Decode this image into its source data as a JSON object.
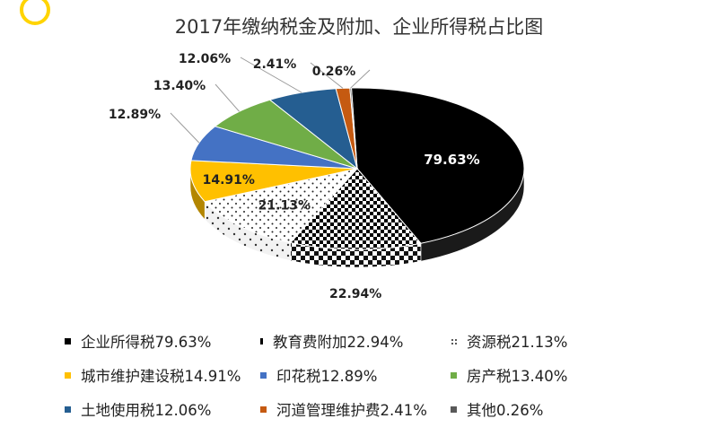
{
  "chart_data": {
    "type": "pie",
    "title": "2017年缴纳税金及附加、企业所得税占比图",
    "slices": [
      {
        "name": "企业所得税",
        "value": 79.63,
        "label": "79.63%",
        "legend": "企业所得税79.63%",
        "color": "#000000",
        "pattern": "solid"
      },
      {
        "name": "教育费附加",
        "value": 22.94,
        "label": "22.94%",
        "legend": "教育费附加22.94%",
        "color": "#000000",
        "pattern": "checker"
      },
      {
        "name": "资源税",
        "value": 21.13,
        "label": "21.13%",
        "legend": "资源税21.13%",
        "color": "#ffffff",
        "pattern": "dots"
      },
      {
        "name": "城市维护建设税",
        "value": 14.91,
        "label": "14.91%",
        "legend": "城市维护建设税14.91%",
        "color": "#ffc000",
        "pattern": "solid"
      },
      {
        "name": "印花税",
        "value": 12.89,
        "label": "12.89%",
        "legend": "印花税12.89%",
        "color": "#4472c4",
        "pattern": "solid"
      },
      {
        "name": "房产税",
        "value": 13.4,
        "label": "13.40%",
        "legend": "房产税13.40%",
        "color": "#70ad47",
        "pattern": "solid"
      },
      {
        "name": "土地使用税",
        "value": 12.06,
        "label": "12.06%",
        "legend": "土地使用税12.06%",
        "color": "#255e91",
        "pattern": "solid"
      },
      {
        "name": "河道管理维护费",
        "value": 2.41,
        "label": "2.41%",
        "legend": "河道管理维护费2.41%",
        "color": "#c55a11",
        "pattern": "solid"
      },
      {
        "name": "其他",
        "value": 0.26,
        "label": "0.26%",
        "legend": "其他0.26%",
        "color": "#595959",
        "pattern": "solid"
      }
    ],
    "legend_position": "bottom"
  }
}
